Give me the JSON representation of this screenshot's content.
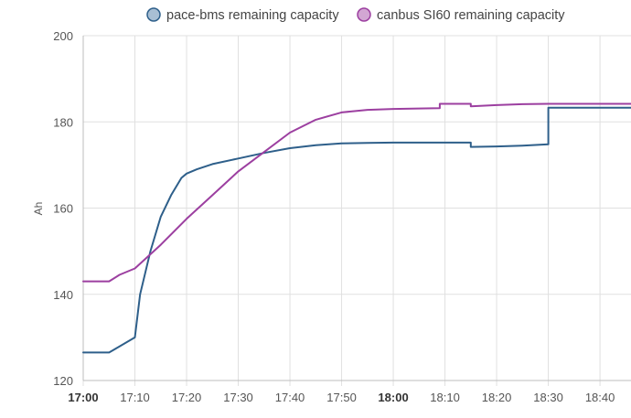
{
  "chart_data": {
    "type": "line",
    "title": "",
    "xlabel": "",
    "ylabel": "Ah",
    "ylim": [
      120,
      200
    ],
    "y_ticks": [
      "120",
      "140",
      "160",
      "180",
      "200"
    ],
    "y_tick_values": [
      120,
      140,
      160,
      180,
      200
    ],
    "x_ticks": [
      "17:00",
      "17:10",
      "17:20",
      "17:30",
      "17:40",
      "17:50",
      "18:00",
      "18:10",
      "18:20",
      "18:30",
      "18:40"
    ],
    "x_ticks_bold": [
      "17:00",
      "18:00"
    ],
    "xlim": [
      "17:00",
      "18:46"
    ],
    "grid": true,
    "legend_position": "top-center",
    "series": [
      {
        "name": "pace-bms remaining capacity",
        "color": "#2e5f8a",
        "legend_fill": "#a8bfd4",
        "x": [
          "17:00",
          "17:05",
          "17:10",
          "17:11",
          "17:13",
          "17:15",
          "17:17",
          "17:19",
          "17:20",
          "17:22",
          "17:25",
          "17:30",
          "17:35",
          "17:40",
          "17:45",
          "17:50",
          "17:55",
          "18:00",
          "18:05",
          "18:10",
          "18:15",
          "18:15",
          "18:20",
          "18:25",
          "18:30",
          "18:30",
          "18:35",
          "18:40",
          "18:46"
        ],
        "values": [
          126.5,
          126.5,
          130,
          140,
          150,
          158,
          163,
          167,
          168,
          169,
          170.2,
          171.5,
          172.8,
          173.9,
          174.6,
          175,
          175.1,
          175.2,
          175.2,
          175.2,
          175.2,
          174.2,
          174.3,
          174.5,
          174.8,
          183.3,
          183.3,
          183.3,
          183.3
        ]
      },
      {
        "name": "canbus SI60 remaining capacity",
        "color": "#9c3fa0",
        "legend_fill": "#d2a6d3",
        "x": [
          "17:00",
          "17:05",
          "17:07",
          "17:10",
          "17:15",
          "17:20",
          "17:25",
          "17:30",
          "17:35",
          "17:40",
          "17:45",
          "17:50",
          "17:55",
          "18:00",
          "18:05",
          "18:09",
          "18:09",
          "18:15",
          "18:15",
          "18:20",
          "18:25",
          "18:30",
          "18:35",
          "18:40",
          "18:46"
        ],
        "values": [
          143,
          143,
          144.5,
          146,
          151.5,
          157.5,
          163,
          168.5,
          173,
          177.5,
          180.5,
          182.2,
          182.8,
          183,
          183.1,
          183.2,
          184.2,
          184.2,
          183.6,
          183.9,
          184.1,
          184.2,
          184.2,
          184.2,
          184.2
        ]
      }
    ]
  }
}
